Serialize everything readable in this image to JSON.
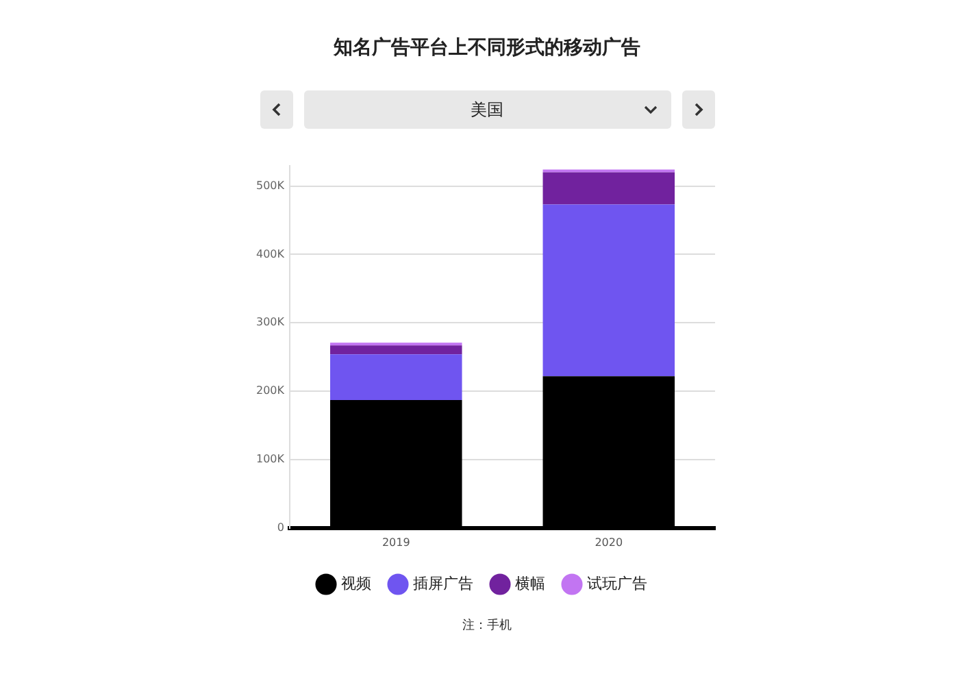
{
  "chart_data": {
    "type": "bar",
    "title": "知名广告平台上不同形式的移动广告",
    "subtitle": "美国",
    "categories": [
      "2019",
      "2020"
    ],
    "stacked": true,
    "series": [
      {
        "name": "视频",
        "color": "#000000",
        "values": [
          187000,
          222000
        ]
      },
      {
        "name": "插屏广告",
        "color": "#6f55f0",
        "values": [
          67000,
          251000
        ]
      },
      {
        "name": "横幅",
        "color": "#71229e",
        "values": [
          13000,
          47000
        ]
      },
      {
        "name": "试玩广告",
        "color": "#c275f2",
        "values": [
          4000,
          4000
        ]
      }
    ],
    "ylim": [
      0,
      530000
    ],
    "yticks": [
      0,
      {
        "value": 100000,
        "label": "100K"
      },
      {
        "value": 200000,
        "label": "200K"
      },
      {
        "value": 300000,
        "label": "300K"
      },
      {
        "value": 400000,
        "label": "400K"
      },
      {
        "value": 500000,
        "label": "500K"
      }
    ],
    "grid": "y",
    "legend": "bottom",
    "annotations": [
      "注：手机"
    ]
  }
}
